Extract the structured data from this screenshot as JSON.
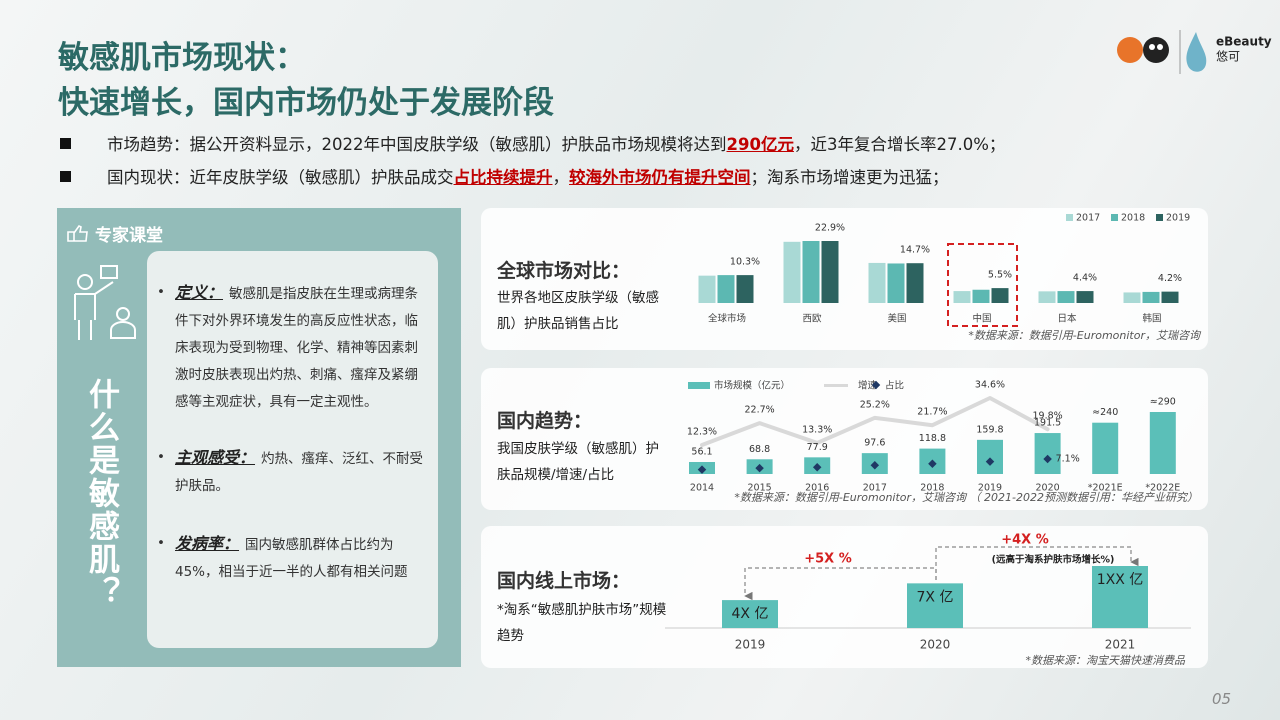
{
  "header": {
    "title_lines": [
      "敏感肌市场现状：",
      "快速增长，国内市场仍处于发展阶段"
    ],
    "logo": {
      "brand": "eBeauty",
      "cn": "悠可"
    }
  },
  "bullets": [
    {
      "segments": [
        {
          "text": "市场趋势：据公开资料显示，2022年中国皮肤学级（敏感肌）护肤品市场规模将达到",
          "style": "plain"
        },
        {
          "text": "290亿元",
          "style": "highlight"
        },
        {
          "text": "，近3年复合增长率27.0%；",
          "style": "plain"
        }
      ]
    },
    {
      "segments": [
        {
          "text": "国内现状：近年皮肤学级（敏感肌）护肤品成交",
          "style": "plain"
        },
        {
          "text": "占比持续提升",
          "style": "highlight"
        },
        {
          "text": "，",
          "style": "plain"
        },
        {
          "text": "较海外市场仍有提升空间",
          "style": "highlight"
        },
        {
          "text": "；淘系市场增速更为迅猛；",
          "style": "plain"
        }
      ]
    }
  ],
  "expert": {
    "title": "专家课堂",
    "question": "什么是敏感肌？",
    "items": [
      {
        "term": "定义：",
        "text": "敏感肌是指皮肤在生理或病理条件下对外界环境发生的高反应性状态，临床表现为受到物理、化学、精神等因素刺激时皮肤表现出灼热、刺痛、瘙痒及紧绷感等主观症状，具有一定主观性。"
      },
      {
        "term": "主观感受：",
        "text": "灼热、瘙痒、泛红、不耐受护肤品。"
      },
      {
        "term": "发病率：",
        "text": "国内敏感肌群体占比约为45%，相当于近一半的人都有相关问题"
      }
    ]
  },
  "chart_data": [
    {
      "type": "grouped-bar",
      "title": "全球市场对比：",
      "subtitle": "世界各地区皮肤学级（敏感肌）护肤品销售占比",
      "source": "*数据来源：数据引用-Euromonitor，艾瑞咨询",
      "categories": [
        "全球市场",
        "西欧",
        "美国",
        "中国",
        "日本",
        "韩国"
      ],
      "legend": "top-right",
      "series": [
        {
          "name": "2017",
          "color": "#a9d9d5",
          "values": [
            10.1,
            22.6,
            14.8,
            4.4,
            4.3,
            3.9
          ]
        },
        {
          "name": "2018",
          "color": "#5cb8b2",
          "values": [
            10.3,
            22.9,
            14.6,
            4.9,
            4.4,
            4.1
          ]
        },
        {
          "name": "2019",
          "color": "#2d6360",
          "values": [
            10.3,
            22.9,
            14.7,
            5.5,
            4.4,
            4.2
          ],
          "value_labels": [
            "10.3%",
            "22.9%",
            "14.7%",
            "5.5%",
            "4.4%",
            "4.2%"
          ]
        }
      ]
    },
    {
      "type": "combo",
      "title": "国内趋势：",
      "subtitle": "我国皮肤学级（敏感肌）护肤品规模/增速/占比",
      "source": "*数据来源：数据引用-Euromonitor，艾瑞咨询 （ 2021-2022预测数据引用：华经产业研究）",
      "categories": [
        "2014",
        "2015",
        "2016",
        "2017",
        "2018",
        "2019",
        "2020",
        "*2021E",
        "*2022E"
      ],
      "legend": "top-left",
      "series": [
        {
          "name": "市场规模（亿元）",
          "type": "bar",
          "color": "#5bbfb8",
          "values": [
            56.1,
            68.8,
            77.9,
            97.6,
            118.8,
            159.8,
            191.5,
            240,
            290
          ],
          "value_labels": [
            "56.1",
            "68.8",
            "77.9",
            "97.6",
            "118.8",
            "159.8",
            "191.5",
            "≈240",
            "≈290"
          ]
        },
        {
          "name": "增速",
          "type": "line",
          "color": "#d9d9d9",
          "values": [
            12.3,
            22.7,
            13.3,
            25.2,
            21.7,
            34.6,
            19.8,
            null,
            null
          ],
          "value_labels": [
            "12.3%",
            "22.7%",
            "13.3%",
            "25.2%",
            "21.7%",
            "34.6%",
            "19.8%",
            null,
            null
          ]
        },
        {
          "name": "占比",
          "type": "scatter",
          "color": "#1f3864",
          "values": [
            3.5,
            4.0,
            4.3,
            5.0,
            5.5,
            6.2,
            7.1,
            null,
            null
          ],
          "value_labels": [
            null,
            null,
            null,
            null,
            null,
            null,
            "7.1%",
            null,
            null
          ]
        }
      ]
    },
    {
      "type": "bar",
      "title": "国内线上市场：",
      "subtitle": "*淘系“敏感肌护肤市场”规模趋势",
      "source": "*数据来源：淘宝天猫快速消费品",
      "categories": [
        "2019",
        "2020",
        "2021"
      ],
      "values": [
        45,
        72,
        100
      ],
      "value_labels": [
        "4X 亿",
        "7X 亿",
        "1XX 亿"
      ],
      "color": "#5bbfb8",
      "annotations": [
        "+5X %",
        "+4X %",
        "(远高于淘系护肤市场增长%)"
      ]
    }
  ],
  "page_number": "05"
}
